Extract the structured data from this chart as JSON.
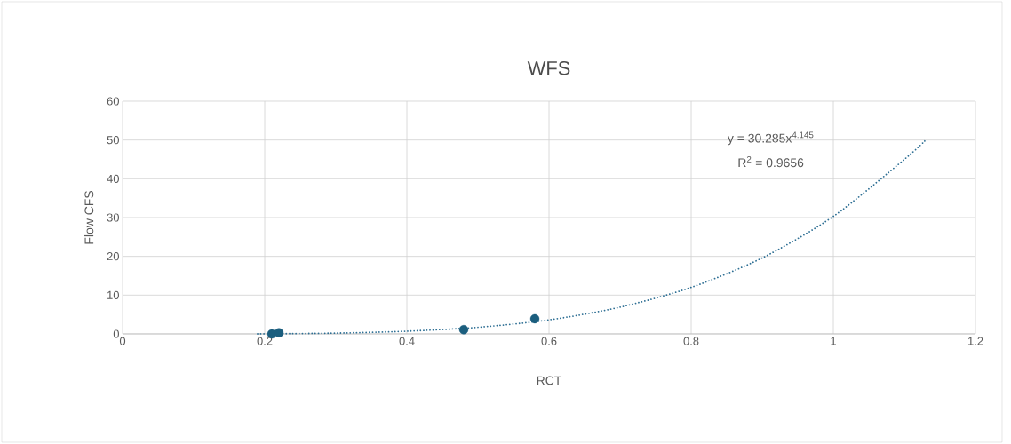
{
  "chart_data": {
    "type": "scatter",
    "title": "WFS",
    "xlabel": "RCT",
    "ylabel": "Flow CFS",
    "xlim": [
      0,
      1.2
    ],
    "ylim": [
      0,
      60
    ],
    "xticks": [
      0,
      0.2,
      0.4,
      0.6,
      0.8,
      1,
      1.2
    ],
    "yticks": [
      0,
      10,
      20,
      30,
      40,
      50,
      60
    ],
    "grid": true,
    "annotations": [
      "y = 30.285x$^{4.145}$",
      "R$^{2}$ = 0.9656"
    ],
    "series": [
      {
        "color": "#1b5e7e",
        "marker": "circle",
        "x": [
          0.21,
          0.22,
          0.48,
          0.58
        ],
        "values": [
          0,
          0.3,
          1.1,
          3.9
        ]
      },
      {
        "type": "line",
        "color": "#2e6f94",
        "marker": "none",
        "line_style": "dotted",
        "x": [
          0.19,
          0.3,
          0.4,
          0.5,
          0.6,
          0.7,
          0.8,
          0.9,
          1.0,
          1.1,
          1.13
        ],
        "values": [
          0,
          0.2,
          0.7,
          1.7,
          3.6,
          6.9,
          12,
          19.6,
          30.3,
          45,
          50
        ]
      }
    ]
  }
}
